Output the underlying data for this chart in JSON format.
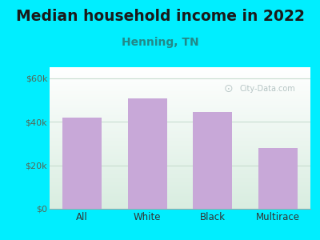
{
  "title": "Median household income in 2022",
  "subtitle": "Henning, TN",
  "categories": [
    "All",
    "White",
    "Black",
    "Multirace"
  ],
  "values": [
    42000,
    50500,
    44500,
    28000
  ],
  "bar_color": "#c8a8d8",
  "background_color": "#00eeff",
  "plot_bg_top": "#e8f5f0",
  "plot_bg_bottom": "#d0edd8",
  "title_fontsize": 13.5,
  "subtitle_fontsize": 10,
  "ylabel_ticks": [
    0,
    20000,
    40000,
    60000
  ],
  "ylabel_labels": [
    "$0",
    "$20k",
    "$40k",
    "$60k"
  ],
  "ylim": [
    0,
    65000
  ],
  "tick_color": "#556655",
  "axis_label_color": "#333333",
  "subtitle_color": "#228888",
  "title_color": "#1a1a1a",
  "watermark_text": "City-Data.com",
  "watermark_color": "#aabbbb",
  "grid_color": "#c8ddd0"
}
